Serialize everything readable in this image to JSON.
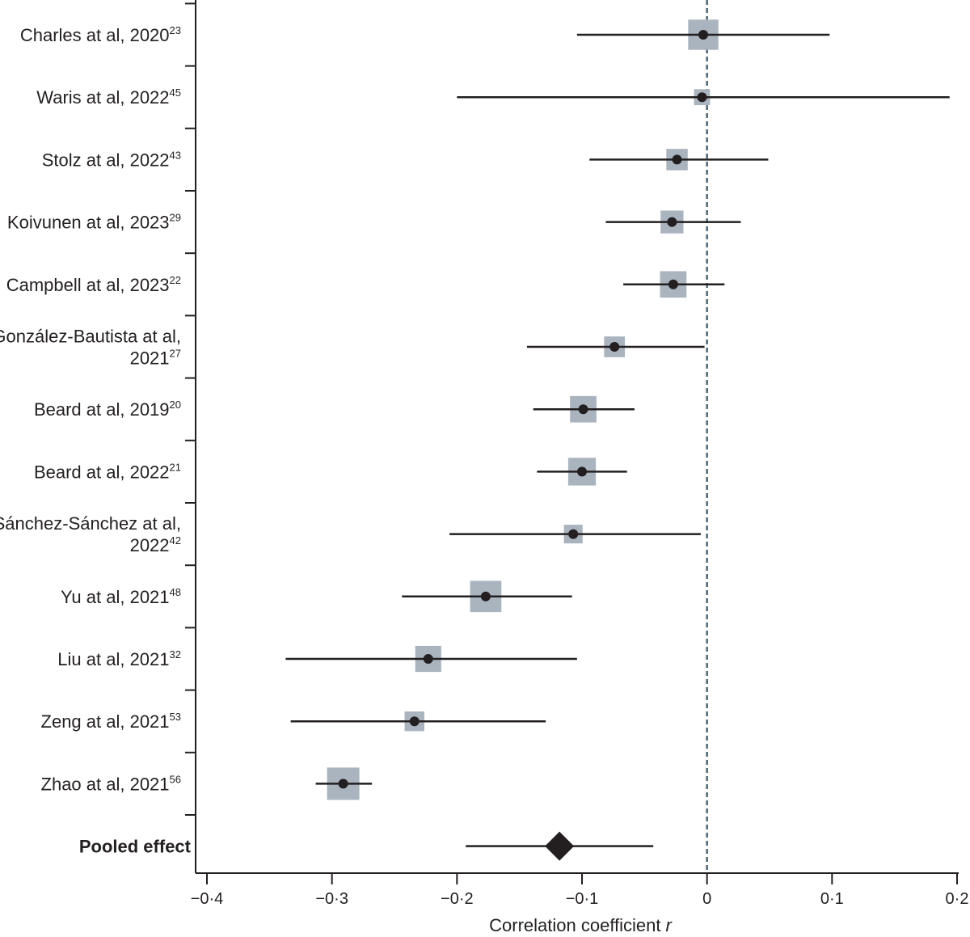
{
  "colors": {
    "ink": "#231f20",
    "weight_box": "#aab4bf",
    "null_line": "#4e6573"
  },
  "chart_data": {
    "type": "forest",
    "title": "",
    "xlabel": "Correlation coefficient",
    "xlabel_symbol": "r",
    "xlim": [
      -0.4,
      0.2
    ],
    "null_value": 0,
    "x_ticks": [
      -0.4,
      -0.3,
      -0.2,
      -0.1,
      0,
      0.1,
      0.2
    ],
    "x_tick_labels": [
      "−0·4",
      "−0·3",
      "−0·2",
      "−0·1",
      "0",
      "0·1",
      "0·2"
    ],
    "studies": [
      {
        "label_lines": [
          "Charles at al, 2020"
        ],
        "ref": "23",
        "estimate": -0.003,
        "ci": [
          -0.104,
          0.098
        ],
        "weight": 0.9
      },
      {
        "label_lines": [
          "Waris at al, 2022"
        ],
        "ref": "45",
        "estimate": -0.004,
        "ci": [
          -0.2,
          0.194
        ],
        "weight": 0.22
      },
      {
        "label_lines": [
          "Stolz at al, 2022"
        ],
        "ref": "43",
        "estimate": -0.024,
        "ci": [
          -0.094,
          0.049
        ],
        "weight": 0.48
      },
      {
        "label_lines": [
          "Koivunen at al, 2023"
        ],
        "ref": "29",
        "estimate": -0.028,
        "ci": [
          -0.081,
          0.027
        ],
        "weight": 0.55
      },
      {
        "label_lines": [
          "Campbell at al, 2023"
        ],
        "ref": "22",
        "estimate": -0.027,
        "ci": [
          -0.067,
          0.014
        ],
        "weight": 0.72
      },
      {
        "label_lines": [
          "González-Bautista at al,",
          "2021"
        ],
        "ref": "27",
        "estimate": -0.074,
        "ci": [
          -0.144,
          -0.002
        ],
        "weight": 0.45
      },
      {
        "label_lines": [
          "Beard at al, 2019"
        ],
        "ref": "20",
        "estimate": -0.099,
        "ci": [
          -0.139,
          -0.058
        ],
        "weight": 0.72
      },
      {
        "label_lines": [
          "Beard at al, 2022"
        ],
        "ref": "21",
        "estimate": -0.1,
        "ci": [
          -0.136,
          -0.064
        ],
        "weight": 0.78
      },
      {
        "label_lines": [
          "Sánchez-Sánchez at al,",
          "2022"
        ],
        "ref": "42",
        "estimate": -0.107,
        "ci": [
          -0.206,
          -0.005
        ],
        "weight": 0.35
      },
      {
        "label_lines": [
          "Yu at al, 2021"
        ],
        "ref": "48",
        "estimate": -0.177,
        "ci": [
          -0.244,
          -0.108
        ],
        "weight": 0.95
      },
      {
        "label_lines": [
          "Liu at al, 2021"
        ],
        "ref": "32",
        "estimate": -0.223,
        "ci": [
          -0.337,
          -0.104
        ],
        "weight": 0.7
      },
      {
        "label_lines": [
          "Zeng at al, 2021"
        ],
        "ref": "53",
        "estimate": -0.234,
        "ci": [
          -0.333,
          -0.129
        ],
        "weight": 0.4
      },
      {
        "label_lines": [
          "Zhao at al, 2021"
        ],
        "ref": "56",
        "estimate": -0.291,
        "ci": [
          -0.313,
          -0.268
        ],
        "weight": 1.0
      }
    ],
    "pooled": {
      "label": "Pooled effect",
      "estimate": -0.118,
      "ci": [
        -0.193,
        -0.043
      ]
    }
  }
}
